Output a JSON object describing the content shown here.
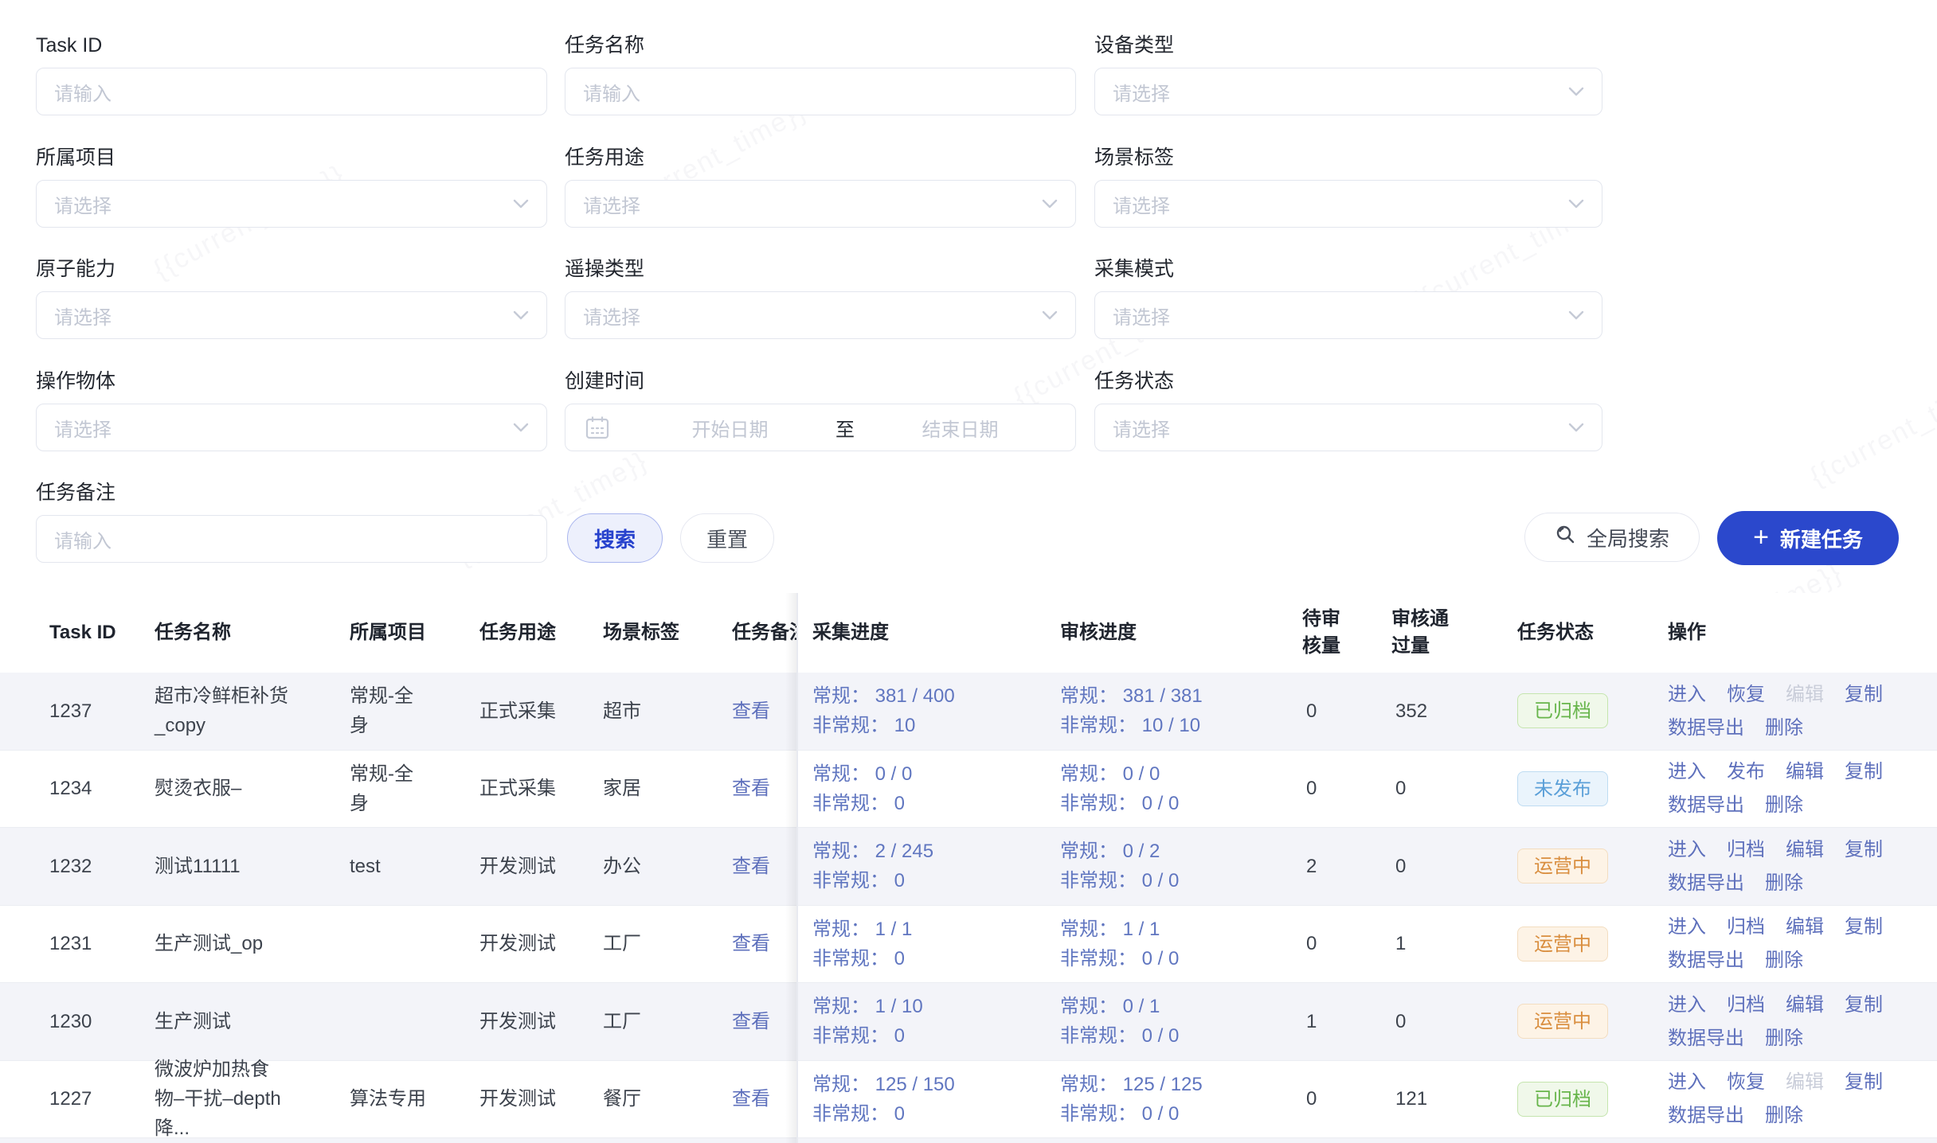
{
  "watermark": "{{current_time}}",
  "filters": {
    "rows": [
      [
        {
          "id": "task-id",
          "label": "Task ID",
          "type": "input",
          "placeholder": "请输入"
        },
        {
          "id": "task-name",
          "label": "任务名称",
          "type": "input",
          "placeholder": "请输入"
        },
        {
          "id": "device-type",
          "label": "设备类型",
          "type": "select",
          "placeholder": "请选择"
        }
      ],
      [
        {
          "id": "project",
          "label": "所属项目",
          "type": "select",
          "placeholder": "请选择"
        },
        {
          "id": "task-usage",
          "label": "任务用途",
          "type": "select",
          "placeholder": "请选择"
        },
        {
          "id": "scene-tag",
          "label": "场景标签",
          "type": "select",
          "placeholder": "请选择"
        }
      ],
      [
        {
          "id": "atomic-ability",
          "label": "原子能力",
          "type": "select",
          "placeholder": "请选择"
        },
        {
          "id": "teleop-type",
          "label": "遥操类型",
          "type": "select",
          "placeholder": "请选择"
        },
        {
          "id": "collect-mode",
          "label": "采集模式",
          "type": "select",
          "placeholder": "请选择"
        }
      ],
      [
        {
          "id": "operate-object",
          "label": "操作物体",
          "type": "select",
          "placeholder": "请选择"
        },
        {
          "id": "create-time",
          "label": "创建时间",
          "type": "daterange",
          "start": "开始日期",
          "separator": "至",
          "end": "结束日期"
        },
        {
          "id": "task-status",
          "label": "任务状态",
          "type": "select",
          "placeholder": "请选择"
        }
      ],
      [
        {
          "id": "task-remark",
          "label": "任务备注",
          "type": "input",
          "placeholder": "请输入"
        }
      ]
    ],
    "search_label": "搜索",
    "reset_label": "重置",
    "global_search_label": "全局搜索",
    "new_task_label": "新建任务",
    "new_task_icon": "+"
  },
  "table": {
    "headers": {
      "id": "Task ID",
      "name": "任务名称",
      "project": "所属项目",
      "usage": "任务用途",
      "scene": "场景标签",
      "remark": "任务备注",
      "collect": "采集进度",
      "review": "审核进度",
      "pending": "待审核量",
      "approved": "审核通过量",
      "status": "任务状态",
      "actions": "操作"
    },
    "remark_link": "查看",
    "status_styles": {
      "archived": {
        "label": "已归档",
        "color": "#67b54b",
        "bg": "#f0f8ea",
        "border": "#c5e5ae"
      },
      "unpublished": {
        "label": "未发布",
        "color": "#5a9fd8",
        "bg": "#eaf4fc",
        "border": "#bedcf2"
      },
      "operating": {
        "label": "运营中",
        "color": "#d98e3f",
        "bg": "#fdf3e6",
        "border": "#f3ddc0"
      }
    },
    "rows": [
      {
        "id": "1237",
        "name": "超市冷鲜柜补货_copy",
        "project": "常规-全身",
        "usage": "正式采集",
        "scene": "超市",
        "collect": [
          "常规： 381 / 400",
          "非常规： 10"
        ],
        "review": [
          "常规： 381 / 381",
          "非常规： 10 / 10"
        ],
        "pending": "0",
        "approved": "352",
        "status": "archived",
        "actions": [
          {
            "label": "进入"
          },
          {
            "label": "恢复"
          },
          {
            "label": "编辑",
            "disabled": true
          },
          {
            "label": "复制"
          },
          {
            "label": "数据导出"
          },
          {
            "label": "删除"
          }
        ]
      },
      {
        "id": "1234",
        "name": "熨烫衣服–",
        "project": "常规-全身",
        "usage": "正式采集",
        "scene": "家居",
        "collect": [
          "常规： 0 / 0",
          "非常规： 0"
        ],
        "review": [
          "常规： 0 / 0",
          "非常规： 0 / 0"
        ],
        "pending": "0",
        "approved": "0",
        "status": "unpublished",
        "actions": [
          {
            "label": "进入"
          },
          {
            "label": "发布"
          },
          {
            "label": "编辑"
          },
          {
            "label": "复制"
          },
          {
            "label": "数据导出"
          },
          {
            "label": "删除"
          }
        ]
      },
      {
        "id": "1232",
        "name": "测试11111",
        "project": "test",
        "usage": "开发测试",
        "scene": "办公",
        "collect": [
          "常规： 2 / 245",
          "非常规： 0"
        ],
        "review": [
          "常规： 0 / 2",
          "非常规： 0 / 0"
        ],
        "pending": "2",
        "approved": "0",
        "status": "operating",
        "actions": [
          {
            "label": "进入"
          },
          {
            "label": "归档"
          },
          {
            "label": "编辑"
          },
          {
            "label": "复制"
          },
          {
            "label": "数据导出"
          },
          {
            "label": "删除"
          }
        ]
      },
      {
        "id": "1231",
        "name": "生产测试_op",
        "project": "",
        "usage": "开发测试",
        "scene": "工厂",
        "collect": [
          "常规： 1 / 1",
          "非常规： 0"
        ],
        "review": [
          "常规： 1 / 1",
          "非常规： 0 / 0"
        ],
        "pending": "0",
        "approved": "1",
        "status": "operating",
        "actions": [
          {
            "label": "进入"
          },
          {
            "label": "归档"
          },
          {
            "label": "编辑"
          },
          {
            "label": "复制"
          },
          {
            "label": "数据导出"
          },
          {
            "label": "删除"
          }
        ]
      },
      {
        "id": "1230",
        "name": "生产测试",
        "project": "",
        "usage": "开发测试",
        "scene": "工厂",
        "collect": [
          "常规： 1 / 10",
          "非常规： 0"
        ],
        "review": [
          "常规： 0 / 1",
          "非常规： 0 / 0"
        ],
        "pending": "1",
        "approved": "0",
        "status": "operating",
        "actions": [
          {
            "label": "进入"
          },
          {
            "label": "归档"
          },
          {
            "label": "编辑"
          },
          {
            "label": "复制"
          },
          {
            "label": "数据导出"
          },
          {
            "label": "删除"
          }
        ]
      },
      {
        "id": "1227",
        "name": "微波炉加热食物–干扰–depth降...",
        "project": "算法专用",
        "usage": "开发测试",
        "scene": "餐厅",
        "collect": [
          "常规： 125 / 150",
          "非常规： 0"
        ],
        "review": [
          "常规： 125 / 125",
          "非常规： 0 / 0"
        ],
        "pending": "0",
        "approved": "121",
        "status": "archived",
        "actions": [
          {
            "label": "进入"
          },
          {
            "label": "恢复"
          },
          {
            "label": "编辑",
            "disabled": true
          },
          {
            "label": "复制"
          },
          {
            "label": "数据导出"
          },
          {
            "label": "删除"
          }
        ]
      }
    ]
  },
  "colors": {
    "accent": "#2b48cc",
    "link": "#5e70bc",
    "link_disabled": "#c9cdd9",
    "stripe": "#f3f4f9"
  }
}
